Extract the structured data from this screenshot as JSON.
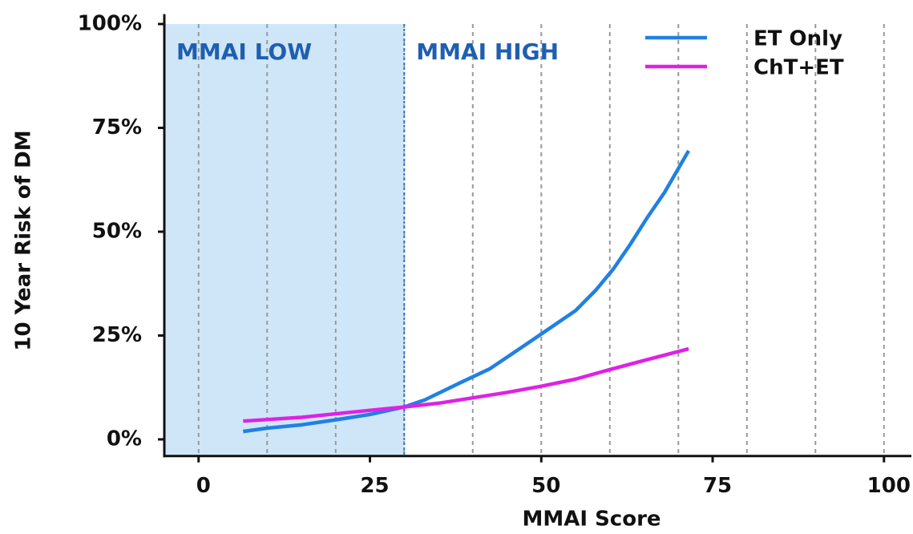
{
  "chart_data": {
    "type": "line",
    "x_label": "MMAI Score",
    "y_label": "10 Year Risk of DM",
    "xlim": [
      -5,
      104
    ],
    "ylim": [
      -4,
      102
    ],
    "xticks": [
      0,
      25,
      50,
      75,
      100
    ],
    "yticks": [
      {
        "value": 0,
        "label": "0%"
      },
      {
        "value": 25,
        "label": "25%"
      },
      {
        "value": 50,
        "label": "50%"
      },
      {
        "value": 75,
        "label": "75%"
      },
      {
        "value": 100,
        "label": "100%"
      }
    ],
    "xgrid": [
      0,
      10,
      20,
      30,
      40,
      50,
      60,
      70,
      80,
      90,
      100
    ],
    "threshold": 30,
    "shade_color": "#cfe6f8",
    "annotations": [
      "MMAI LOW",
      "MMAI HIGH"
    ],
    "legend": "upper right",
    "series": [
      {
        "name": "ET Only",
        "color": "#2180e3",
        "x": [
          6.5,
          10,
          15,
          20,
          25,
          30,
          33,
          38,
          42.5,
          47,
          51,
          55,
          58,
          60.5,
          63,
          65.5,
          68,
          71.5
        ],
        "values": [
          1.9,
          2.7,
          3.5,
          4.7,
          6,
          7.8,
          9.5,
          13.5,
          17,
          22,
          26.5,
          31,
          36,
          41,
          47,
          53.5,
          59.5,
          69.5
        ]
      },
      {
        "name": "ChT+ET",
        "color": "#dd22e6",
        "x": [
          6.5,
          15,
          22,
          30,
          35,
          40,
          45,
          50,
          55,
          60,
          65,
          71.5
        ],
        "values": [
          4.4,
          5.3,
          6.5,
          7.8,
          8.7,
          10,
          11.3,
          12.8,
          14.5,
          16.8,
          19,
          21.8
        ]
      }
    ]
  }
}
